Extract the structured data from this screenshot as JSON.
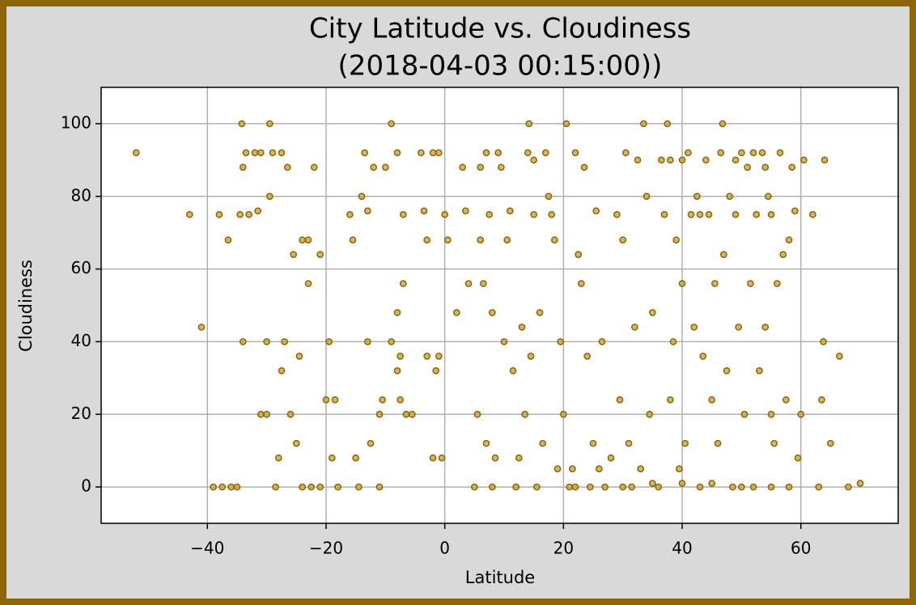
{
  "chart_data": {
    "type": "scatter",
    "title": [
      "City Latitude vs. Cloudiness",
      "(2018-04-03 00:15:00))"
    ],
    "xlabel": "Latitude",
    "ylabel": "Cloudiness",
    "xlim": [
      -57.9,
      76.4
    ],
    "ylim": [
      -10,
      110
    ],
    "xticks": [
      {
        "value": -40,
        "label": "−40"
      },
      {
        "value": -20,
        "label": "−20"
      },
      0,
      20,
      40,
      60
    ],
    "yticks": [
      0,
      20,
      40,
      60,
      80,
      100
    ],
    "grid": true,
    "color": "#c9a43c",
    "edgecolor": "#8b6508",
    "x": [
      -52,
      -43,
      -41,
      -39,
      -38,
      -37.5,
      -36.5,
      -36,
      -35,
      -34.5,
      -34.2,
      -34,
      -34,
      -33.5,
      -33,
      -32,
      -31.5,
      -31,
      -31,
      -30,
      -30,
      -29.5,
      -29.5,
      -29,
      -28.5,
      -28,
      -27.5,
      -27.5,
      -27,
      -26.5,
      -26,
      -25.5,
      -25,
      -24.5,
      -24,
      -24,
      -23,
      -23,
      -22.5,
      -22,
      -21,
      -21,
      -20,
      -19.5,
      -19,
      -18.5,
      -18,
      -16,
      -15.5,
      -15,
      -14.5,
      -14,
      -13.5,
      -13,
      -13,
      -12.5,
      -12,
      -11,
      -11,
      -10.5,
      -10,
      -9,
      -9,
      -8,
      -8,
      -8,
      -7.5,
      -7.5,
      -7,
      -7,
      -6.5,
      -5.5,
      -4,
      -3.5,
      -3,
      -3,
      -2,
      -2,
      -1.5,
      -1,
      -1,
      -0.5,
      0,
      0.5,
      2,
      3,
      3.5,
      4,
      5,
      5.5,
      6,
      6,
      6.5,
      7,
      7,
      7.5,
      8,
      8,
      8.5,
      9,
      9.5,
      10,
      10.5,
      11,
      11.5,
      12,
      12.5,
      13,
      13.5,
      14,
      14.2,
      14.5,
      15,
      15,
      15.5,
      16,
      16.5,
      17,
      17.5,
      18,
      18.5,
      19,
      19.5,
      20,
      20.5,
      21,
      21.5,
      22,
      22.5,
      23,
      23.5,
      24,
      24.5,
      25,
      25.5,
      26,
      26.5,
      27,
      28,
      29,
      29.5,
      30,
      30.5,
      31,
      31.5,
      32,
      32.5,
      33,
      33.5,
      34,
      34.5,
      35,
      36,
      36.5,
      37,
      37.5,
      38,
      38.5,
      39,
      39.5,
      40,
      40,
      40.5,
      41,
      41.5,
      42,
      42.5,
      43,
      43.5,
      44,
      44.5,
      45,
      45.5,
      46,
      46.5,
      46.8,
      47,
      47.5,
      48,
      48.5,
      49,
      49.5,
      50,
      50.5,
      51,
      51.5,
      52,
      52.5,
      53,
      53.5,
      54,
      54.5,
      55,
      55.5,
      56,
      56.5,
      57,
      57.5,
      58,
      58.5,
      59,
      59.5,
      60,
      60.5,
      62,
      63,
      63.5,
      63.8,
      64,
      65,
      66.5,
      68,
      70,
      22,
      30,
      35,
      40,
      45,
      50,
      55,
      58,
      38,
      43,
      49,
      52,
      54,
      55
    ],
    "values": [
      92,
      75,
      44,
      0,
      75,
      0,
      68,
      0,
      0,
      75,
      100,
      88,
      40,
      92,
      75,
      92,
      76,
      92,
      20,
      20,
      40,
      100,
      80,
      92,
      0,
      8,
      92,
      32,
      40,
      88,
      20,
      64,
      12,
      36,
      68,
      0,
      68,
      56,
      0,
      88,
      64,
      0,
      24,
      40,
      8,
      24,
      0,
      75,
      68,
      8,
      0,
      80,
      92,
      40,
      76,
      12,
      88,
      20,
      0,
      24,
      88,
      100,
      40,
      92,
      48,
      32,
      36,
      24,
      56,
      75,
      20,
      20,
      92,
      76,
      68,
      36,
      8,
      92,
      32,
      92,
      36,
      8,
      75,
      68,
      48,
      88,
      76,
      56,
      0,
      20,
      68,
      88,
      56,
      92,
      12,
      75,
      0,
      48,
      8,
      92,
      88,
      40,
      68,
      76,
      32,
      0,
      8,
      44,
      20,
      92,
      100,
      36,
      90,
      75,
      0,
      48,
      12,
      92,
      80,
      75,
      68,
      5,
      40,
      20,
      100,
      0,
      5,
      92,
      64,
      56,
      88,
      36,
      0,
      12,
      76,
      5,
      40,
      0,
      8,
      75,
      24,
      68,
      92,
      12,
      0,
      44,
      90,
      5,
      100,
      80,
      20,
      48,
      0,
      90,
      75,
      100,
      24,
      40,
      68,
      5,
      56,
      90,
      12,
      92,
      75,
      44,
      80,
      0,
      36,
      90,
      75,
      24,
      56,
      12,
      92,
      100,
      64,
      32,
      80,
      0,
      75,
      44,
      92,
      20,
      88,
      56,
      0,
      75,
      32,
      92,
      44,
      80,
      20,
      12,
      56,
      92,
      64,
      24,
      68,
      88,
      76,
      8,
      20,
      90,
      75,
      0,
      24,
      40,
      90,
      12,
      36,
      0,
      1,
      0,
      0,
      1,
      1,
      1,
      0,
      0,
      0,
      90,
      75,
      90,
      92,
      88,
      75
    ]
  }
}
